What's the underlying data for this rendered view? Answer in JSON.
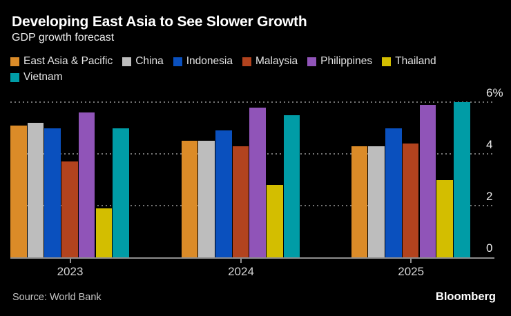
{
  "header": {
    "title": "Developing East Asia to See Slower Growth",
    "subtitle": "GDP growth forecast"
  },
  "chart_data": {
    "type": "bar",
    "title": "Developing East Asia to See Slower Growth",
    "subtitle": "GDP growth forecast",
    "categories": [
      "2023",
      "2024",
      "2025"
    ],
    "series": [
      {
        "name": "East Asia & Pacific",
        "color": "#DB8B28",
        "values": [
          5.1,
          4.5,
          4.3
        ]
      },
      {
        "name": "China",
        "color": "#BDBDBD",
        "values": [
          5.2,
          4.5,
          4.3
        ]
      },
      {
        "name": "Indonesia",
        "color": "#0A50BE",
        "values": [
          5.0,
          4.9,
          5.0
        ]
      },
      {
        "name": "Malaysia",
        "color": "#B2431E",
        "values": [
          3.7,
          4.3,
          4.4
        ]
      },
      {
        "name": "Philippines",
        "color": "#9054B8",
        "values": [
          5.6,
          5.8,
          5.9
        ]
      },
      {
        "name": "Thailand",
        "color": "#D3BE00",
        "values": [
          1.9,
          2.8,
          3.0
        ]
      },
      {
        "name": "Vietnam",
        "color": "#009CA6",
        "values": [
          5.0,
          5.5,
          6.0
        ]
      }
    ],
    "xlabel": "",
    "ylabel": "",
    "ylim": [
      0,
      6
    ],
    "yticks": [
      {
        "value": 6,
        "label": "6%"
      },
      {
        "value": 4,
        "label": "4"
      },
      {
        "value": 2,
        "label": "2"
      },
      {
        "value": 0,
        "label": "0"
      }
    ],
    "legend_position": "top",
    "grid": "horizontal dotted",
    "unit": "percent"
  },
  "footer": {
    "source": "Source: World Bank",
    "brand": "Bloomberg"
  },
  "colors": {
    "background": "#000000",
    "title": "#FFFFFF",
    "subtitle": "#EDEDED",
    "legend_text": "#E4E4E4",
    "grid": "#757575",
    "axis_line": "#8E8E8E",
    "tick_label": "#EAEAEA",
    "year_label": "#D4D4D4",
    "source_text": "#C6C6C6",
    "brand_text": "#FFFFFF"
  }
}
